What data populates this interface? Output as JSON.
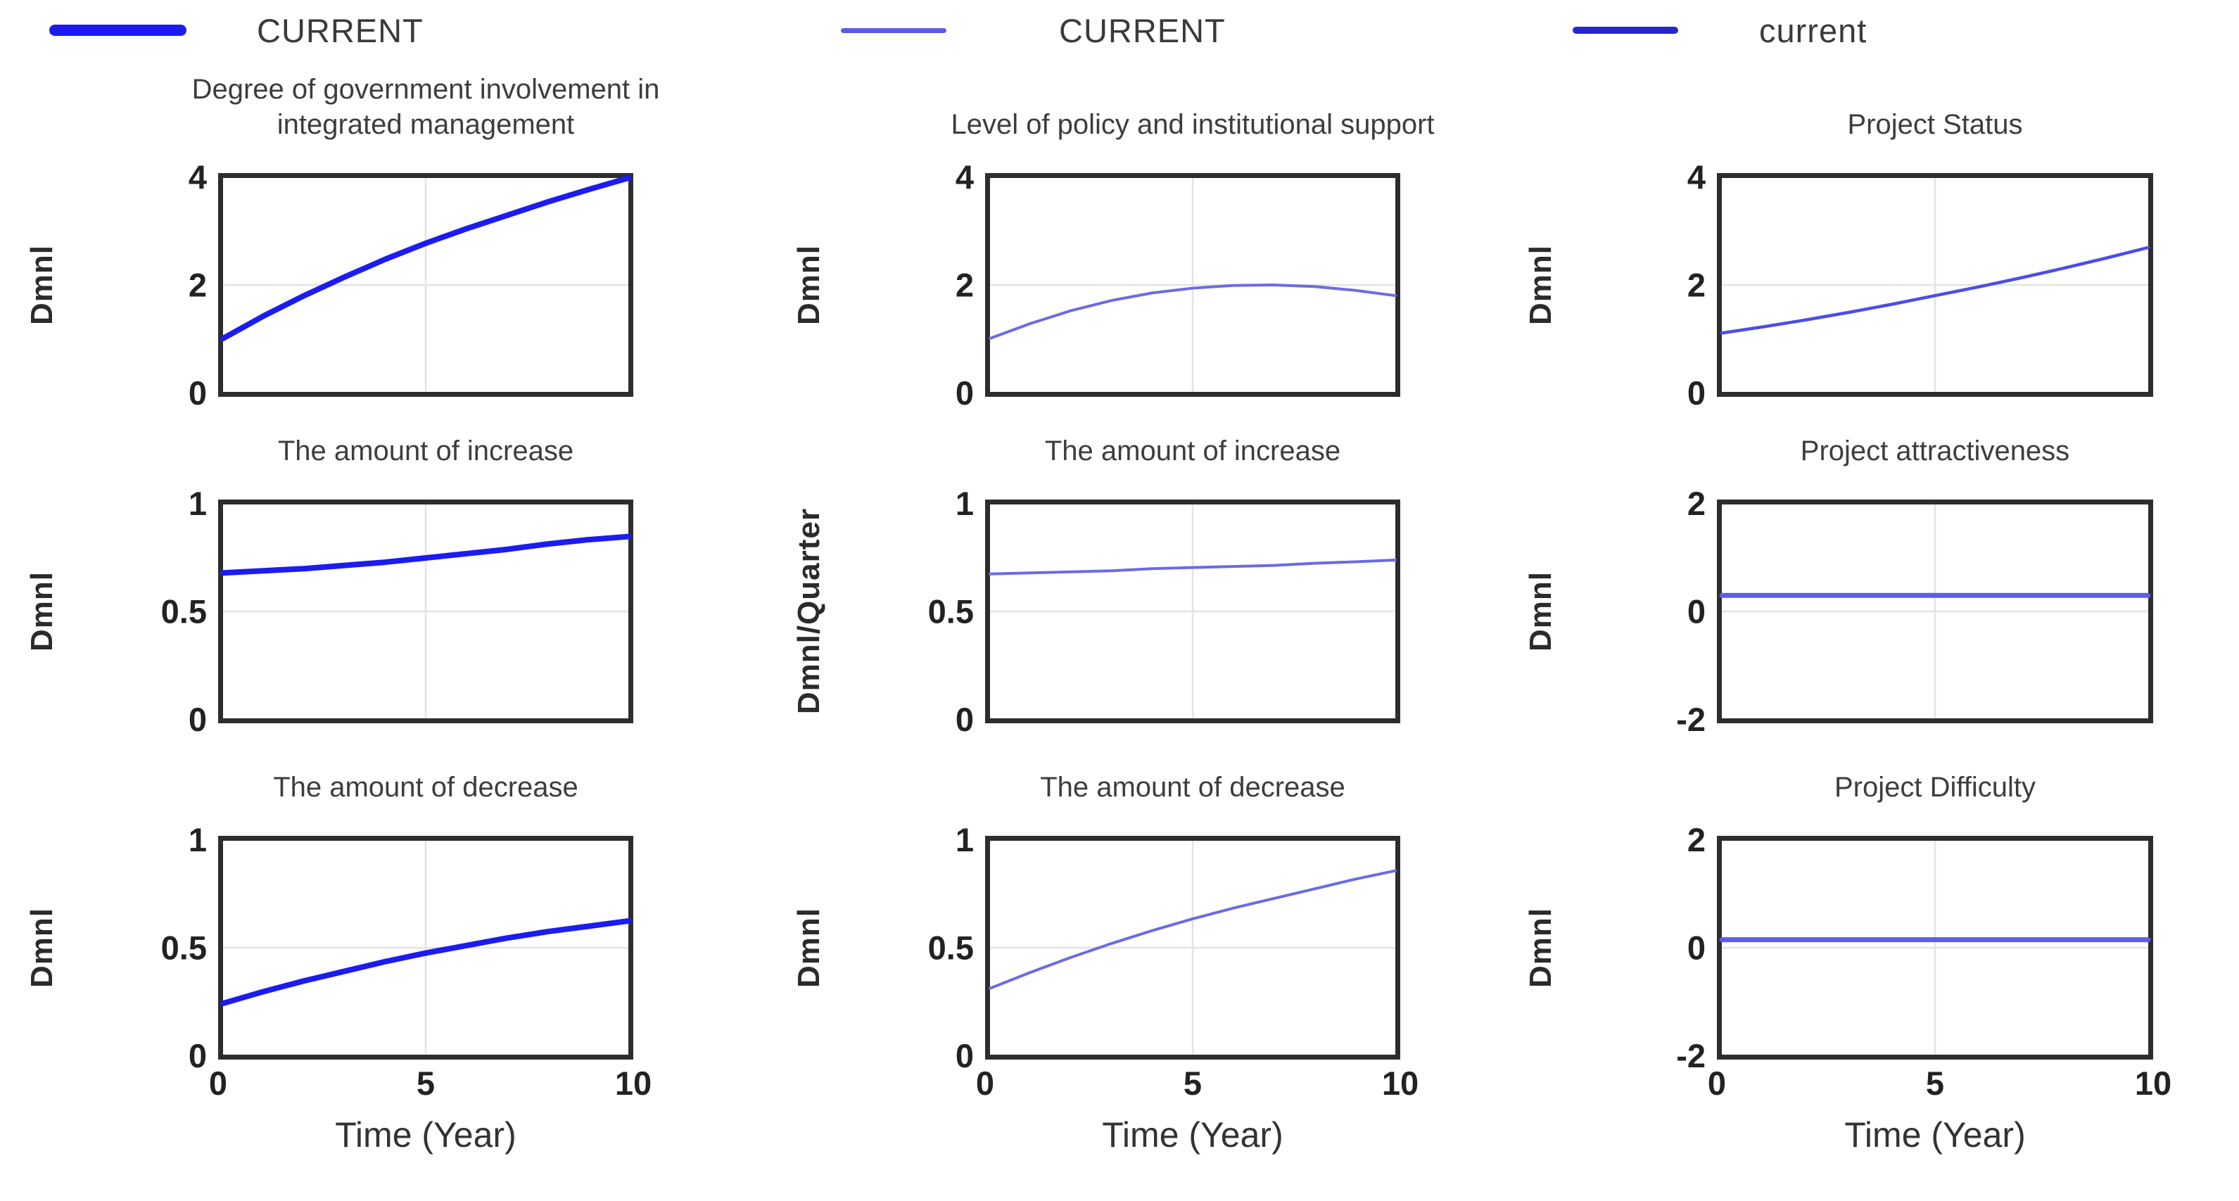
{
  "legends": [
    {
      "label": "CURRENT",
      "color": "#1c1cf0",
      "line_width": 195,
      "line_height": 16
    },
    {
      "label": "CURRENT",
      "color": "#5c5ce6",
      "line_width": 150,
      "line_height": 7
    },
    {
      "label": "current",
      "color": "#2626cf",
      "line_width": 150,
      "line_height": 10
    }
  ],
  "chart_data": [
    {
      "type": "line",
      "title": "Degree of government involvement in\nintegrated management",
      "ylabel": "Dmnl",
      "series_name": "CURRENT",
      "x": [
        0,
        1,
        2,
        3,
        4,
        5,
        6,
        7,
        8,
        9,
        10
      ],
      "y": [
        1.0,
        1.42,
        1.8,
        2.15,
        2.48,
        2.78,
        3.05,
        3.3,
        3.55,
        3.78,
        4.0
      ],
      "xlim": [
        0,
        10
      ],
      "ylim": [
        0,
        4
      ],
      "ytick_labels": [
        "4",
        "2",
        "0"
      ],
      "grid": "center-cross",
      "line_color": "#1c1cf0",
      "line_width": 8
    },
    {
      "type": "line",
      "title": "The amount of increase",
      "ylabel": "Dmnl",
      "series_name": "CURRENT",
      "x": [
        0,
        1,
        2,
        3,
        4,
        5,
        6,
        7,
        8,
        9,
        10
      ],
      "y": [
        0.68,
        0.69,
        0.7,
        0.715,
        0.73,
        0.75,
        0.77,
        0.79,
        0.815,
        0.835,
        0.85
      ],
      "xlim": [
        0,
        10
      ],
      "ylim": [
        0,
        1
      ],
      "ytick_labels": [
        "1",
        "0.5",
        "0"
      ],
      "grid": "center-cross",
      "line_color": "#1c1cf0",
      "line_width": 8
    },
    {
      "type": "line",
      "title": "The amount of decrease",
      "ylabel": "Dmnl",
      "series_name": "CURRENT",
      "x": [
        0,
        1,
        2,
        3,
        4,
        5,
        6,
        7,
        8,
        9,
        10
      ],
      "y": [
        0.24,
        0.295,
        0.345,
        0.39,
        0.435,
        0.475,
        0.51,
        0.545,
        0.575,
        0.6,
        0.625
      ],
      "xlim": [
        0,
        10
      ],
      "ylim": [
        0,
        1
      ],
      "ytick_labels": [
        "1",
        "0.5",
        "0"
      ],
      "xtick_labels": [
        "0",
        "5",
        "10"
      ],
      "xlabel": "Time (Year)",
      "grid": "center-cross",
      "line_color": "#1c1cf0",
      "line_width": 8
    },
    {
      "type": "line",
      "title": "Level of policy and institutional support",
      "ylabel": "Dmnl",
      "series_name": "CURRENT",
      "x": [
        0,
        1,
        2,
        3,
        4,
        5,
        6,
        7,
        8,
        9,
        10
      ],
      "y": [
        1.0,
        1.28,
        1.52,
        1.71,
        1.85,
        1.94,
        1.99,
        2.0,
        1.97,
        1.9,
        1.8
      ],
      "xlim": [
        0,
        10
      ],
      "ylim": [
        0,
        4
      ],
      "ytick_labels": [
        "4",
        "2",
        "0"
      ],
      "grid": "center-cross",
      "line_color": "#6b6be4",
      "line_width": 4
    },
    {
      "type": "line",
      "title": "The amount of increase",
      "ylabel": "Dmnl/Quarter",
      "series_name": "CURRENT",
      "x": [
        0,
        1,
        2,
        3,
        4,
        5,
        6,
        7,
        8,
        9,
        10
      ],
      "y": [
        0.675,
        0.68,
        0.685,
        0.69,
        0.7,
        0.705,
        0.71,
        0.715,
        0.725,
        0.732,
        0.74
      ],
      "xlim": [
        0,
        10
      ],
      "ylim": [
        0,
        1
      ],
      "ytick_labels": [
        "1",
        "0.5",
        "0"
      ],
      "grid": "center-cross",
      "line_color": "#6b6be4",
      "line_width": 4
    },
    {
      "type": "line",
      "title": "The amount of decrease",
      "ylabel": "Dmnl",
      "series_name": "CURRENT",
      "x": [
        0,
        1,
        2,
        3,
        4,
        5,
        6,
        7,
        8,
        9,
        10
      ],
      "y": [
        0.31,
        0.385,
        0.455,
        0.52,
        0.58,
        0.635,
        0.685,
        0.73,
        0.775,
        0.82,
        0.86
      ],
      "xlim": [
        0,
        10
      ],
      "ylim": [
        0,
        1
      ],
      "ytick_labels": [
        "1",
        "0.5",
        "0"
      ],
      "xtick_labels": [
        "0",
        "5",
        "10"
      ],
      "xlabel": "Time (Year)",
      "grid": "center-cross",
      "line_color": "#6b6be4",
      "line_width": 4
    },
    {
      "type": "line",
      "title": "Project Status",
      "ylabel": "Dmnl",
      "series_name": "current",
      "x": [
        0,
        1,
        2,
        3,
        4,
        5,
        6,
        7,
        8,
        9,
        10
      ],
      "y": [
        1.1,
        1.22,
        1.35,
        1.49,
        1.64,
        1.8,
        1.96,
        2.13,
        2.31,
        2.5,
        2.7
      ],
      "xlim": [
        0,
        10
      ],
      "ylim": [
        0,
        4
      ],
      "ytick_labels": [
        "4",
        "2",
        "0"
      ],
      "grid": "center-cross",
      "line_color": "#4d4de6",
      "line_width": 4.5
    },
    {
      "type": "line",
      "title": "Project attractiveness",
      "ylabel": "Dmnl",
      "series_name": "current",
      "x": [
        0,
        10
      ],
      "y": [
        0.3,
        0.3
      ],
      "xlim": [
        0,
        10
      ],
      "ylim": [
        -2,
        2
      ],
      "ytick_labels": [
        "2",
        "0",
        "-2"
      ],
      "grid": "center-cross",
      "line_color": "#5d5de8",
      "line_width": 7
    },
    {
      "type": "line",
      "title": "Project Difficulty",
      "ylabel": "Dmnl",
      "series_name": "current",
      "x": [
        0,
        10
      ],
      "y": [
        0.15,
        0.15
      ],
      "xlim": [
        0,
        10
      ],
      "ylim": [
        -2,
        2
      ],
      "ytick_labels": [
        "2",
        "0",
        "-2"
      ],
      "xtick_labels": [
        "0",
        "5",
        "10"
      ],
      "xlabel": "Time (Year)",
      "grid": "center-cross",
      "line_color": "#5d5de8",
      "line_width": 7
    }
  ]
}
